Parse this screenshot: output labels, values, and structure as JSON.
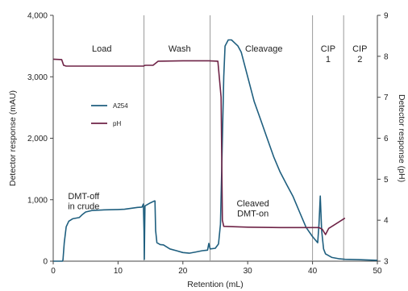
{
  "chart_data": {
    "type": "line",
    "xlabel": "Retention (mL)",
    "ylabel": "Detector response (mAU)",
    "y2label": "Detector response (pH)",
    "xlim": [
      0,
      50
    ],
    "ylim": [
      0,
      4000
    ],
    "y2lim": [
      3,
      9
    ],
    "x_ticks": [
      "0",
      "10",
      "20",
      "30",
      "40",
      "50"
    ],
    "y_ticks": [
      "0",
      "1,000",
      "2,000",
      "3,000",
      "4,000"
    ],
    "y2_ticks": [
      "3",
      "4",
      "5",
      "6",
      "7",
      "8",
      "9"
    ],
    "grid": false,
    "legend_position": "upper-left",
    "phases": [
      {
        "label": "Load",
        "x": 7.5
      },
      {
        "label": "Wash",
        "x": 19.5
      },
      {
        "label": "Cleavage",
        "x": 32.5
      },
      {
        "label": "CIP\n1",
        "x": 42.4
      },
      {
        "label": "CIP\n2",
        "x": 47.3
      }
    ],
    "phase_boundaries": [
      14,
      24.2,
      40,
      44.8
    ],
    "annotations": [
      {
        "text": "DMT-off\nin crude",
        "x": 4.7,
        "y": 1010
      },
      {
        "text": "Cleaved\nDMT-on",
        "x": 30.8,
        "y": 890
      }
    ],
    "series": [
      {
        "name": "A254",
        "axis": "left",
        "color": "#1f5f7f",
        "points": [
          [
            0,
            0
          ],
          [
            1.4,
            0
          ],
          [
            1.5,
            20
          ],
          [
            1.7,
            300
          ],
          [
            2.0,
            560
          ],
          [
            2.4,
            650
          ],
          [
            3.0,
            690
          ],
          [
            4.0,
            710
          ],
          [
            4.5,
            760
          ],
          [
            5.0,
            800
          ],
          [
            6.0,
            825
          ],
          [
            8.0,
            835
          ],
          [
            10.0,
            840
          ],
          [
            11.0,
            845
          ],
          [
            12.0,
            860
          ],
          [
            13.0,
            875
          ],
          [
            13.7,
            880
          ],
          [
            13.9,
            930
          ],
          [
            14.0,
            500
          ],
          [
            14.05,
            30
          ],
          [
            14.1,
            500
          ],
          [
            14.15,
            900
          ],
          [
            15.0,
            950
          ],
          [
            15.6,
            980
          ],
          [
            15.7,
            980
          ],
          [
            15.8,
            500
          ],
          [
            16.0,
            300
          ],
          [
            16.5,
            270
          ],
          [
            17.0,
            265
          ],
          [
            18.0,
            200
          ],
          [
            19.0,
            170
          ],
          [
            20.0,
            140
          ],
          [
            21.0,
            130
          ],
          [
            22.0,
            150
          ],
          [
            23.0,
            170
          ],
          [
            23.8,
            180
          ],
          [
            24.0,
            290
          ],
          [
            24.2,
            200
          ],
          [
            25.0,
            210
          ],
          [
            25.5,
            280
          ],
          [
            25.8,
            600
          ],
          [
            26.0,
            1500
          ],
          [
            26.3,
            3000
          ],
          [
            26.5,
            3500
          ],
          [
            27.0,
            3600
          ],
          [
            27.5,
            3600
          ],
          [
            28.0,
            3550
          ],
          [
            28.5,
            3500
          ],
          [
            29.0,
            3400
          ],
          [
            30.0,
            3000
          ],
          [
            31.0,
            2600
          ],
          [
            32.0,
            2300
          ],
          [
            33.0,
            2000
          ],
          [
            34.0,
            1700
          ],
          [
            35.0,
            1450
          ],
          [
            36.0,
            1250
          ],
          [
            37.0,
            1050
          ],
          [
            38.0,
            800
          ],
          [
            39.0,
            550
          ],
          [
            40.0,
            400
          ],
          [
            40.8,
            300
          ],
          [
            41.0,
            600
          ],
          [
            41.2,
            1060
          ],
          [
            41.4,
            500
          ],
          [
            41.7,
            200
          ],
          [
            42.0,
            120
          ],
          [
            43.0,
            60
          ],
          [
            44.0,
            40
          ],
          [
            45.0,
            30
          ],
          [
            47.0,
            25
          ],
          [
            50.0,
            15
          ]
        ]
      },
      {
        "name": "pH",
        "axis": "right",
        "color": "#6e2346",
        "points": [
          [
            0,
            7.93
          ],
          [
            1.3,
            7.92
          ],
          [
            1.6,
            7.78
          ],
          [
            2.0,
            7.76
          ],
          [
            5.0,
            7.76
          ],
          [
            10.0,
            7.76
          ],
          [
            13.9,
            7.76
          ],
          [
            14.2,
            7.78
          ],
          [
            15.4,
            7.78
          ],
          [
            16.2,
            7.88
          ],
          [
            20.0,
            7.89
          ],
          [
            24.0,
            7.89
          ],
          [
            25.4,
            7.88
          ],
          [
            25.9,
            7.0
          ],
          [
            26.1,
            4.0
          ],
          [
            26.3,
            3.85
          ],
          [
            30.0,
            3.83
          ],
          [
            35.0,
            3.82
          ],
          [
            40.0,
            3.82
          ],
          [
            41.0,
            3.82
          ],
          [
            41.5,
            3.78
          ],
          [
            42.0,
            3.65
          ],
          [
            42.5,
            3.8
          ],
          [
            43.0,
            3.85
          ],
          [
            44.0,
            3.95
          ],
          [
            45.0,
            4.05
          ]
        ]
      }
    ]
  }
}
